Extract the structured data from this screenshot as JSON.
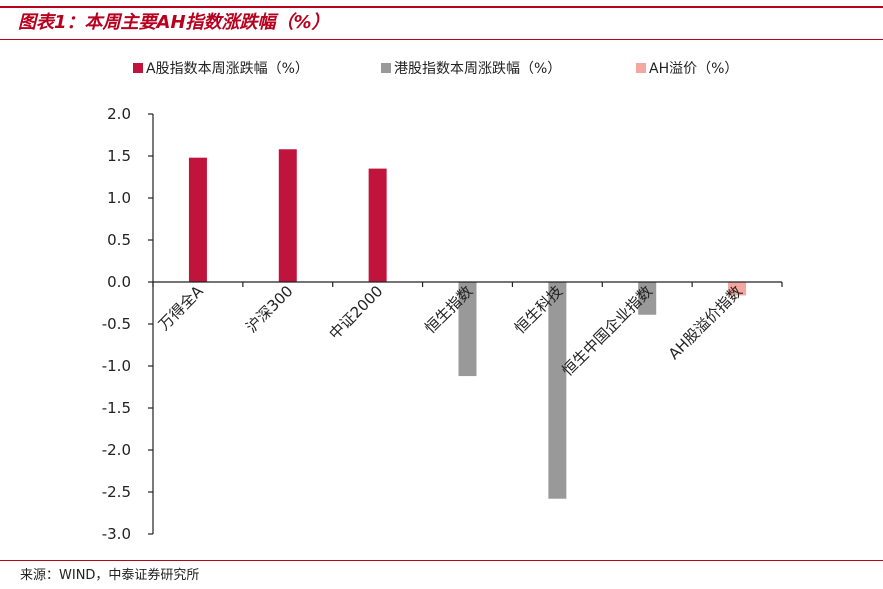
{
  "header": {
    "title": "图表1：本周主要AH指数涨跌幅（%）"
  },
  "footer": {
    "source": "来源：WIND，中泰证券研究所"
  },
  "colors": {
    "brand_red": "#b8001f",
    "series_a": "#c0143c",
    "series_hk": "#999999",
    "series_ah": "#f4a7a0"
  },
  "chart_data": {
    "type": "bar",
    "title": "",
    "xlabel": "",
    "ylabel": "",
    "ylim": [
      -3.0,
      2.0
    ],
    "yticks": [
      2.0,
      1.5,
      1.0,
      0.5,
      0.0,
      -0.5,
      -1.0,
      -1.5,
      -2.0,
      -2.5,
      -3.0
    ],
    "ytick_labels": [
      "2.0",
      "1.5",
      "1.0",
      "0.5",
      "0.0",
      "-0.5",
      "-1.0",
      "-1.5",
      "-2.0",
      "-2.5",
      "-3.0"
    ],
    "grid": false,
    "legend_position": "top",
    "categories": [
      "万得全A",
      "沪深300",
      "中证2000",
      "恒生指数",
      "恒生科技",
      "恒生中国企业指数",
      "AH股溢价指数"
    ],
    "series": [
      {
        "name": "A股指数本周涨跌幅（%）",
        "color": "#c0143c",
        "values": [
          1.48,
          1.58,
          1.35,
          null,
          null,
          null,
          null
        ]
      },
      {
        "name": "港股指数本周涨跌幅（%）",
        "color": "#999999",
        "values": [
          null,
          null,
          null,
          -1.12,
          -2.58,
          -0.39,
          null
        ]
      },
      {
        "name": "AH溢价（%）",
        "color": "#f4a7a0",
        "values": [
          null,
          null,
          null,
          null,
          null,
          null,
          -0.16
        ]
      }
    ]
  }
}
